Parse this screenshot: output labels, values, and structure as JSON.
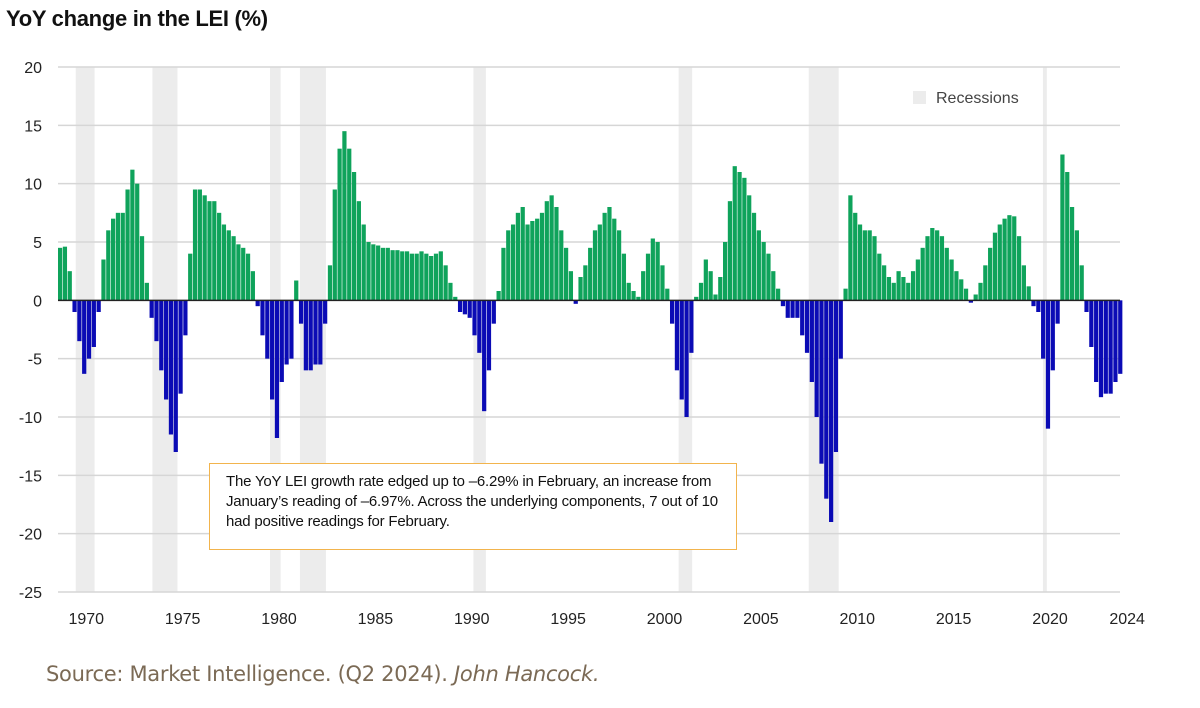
{
  "chart_data": {
    "type": "bar",
    "title": "YoY change in the LEI (%)",
    "xlabel": "",
    "ylabel": "",
    "ylim": [
      -25,
      20
    ],
    "yticks": [
      20,
      15,
      10,
      5,
      0,
      -5,
      -10,
      -15,
      -20,
      -25
    ],
    "xlim": [
      1969,
      2024.2
    ],
    "xticks": [
      1970,
      1975,
      1980,
      1985,
      1990,
      1995,
      2000,
      2005,
      2010,
      2015,
      2020,
      2024
    ],
    "xtick_labels": [
      "1970",
      "1975",
      "1980",
      "1985",
      "1990",
      "1995",
      "2000",
      "2005",
      "2010",
      "2015",
      "2020",
      "2024"
    ],
    "grid": true,
    "legend": {
      "position": "top-right",
      "entries": [
        {
          "label": "Recessions",
          "color": "#ececec"
        }
      ]
    },
    "colors": {
      "positive": "#0fa35b",
      "negative": "#0b0bb5",
      "recession": "#ececec",
      "grid": "#d6d6d6"
    },
    "frequency": "quarterly",
    "quarterly_values_by_year": [
      [
        1969,
        [
          4.5,
          4.6,
          2.5,
          -1
        ]
      ],
      [
        1970,
        [
          -3.5,
          -6.3,
          -5,
          -4
        ]
      ],
      [
        1971,
        [
          -1,
          3.5,
          6,
          7
        ]
      ],
      [
        1972,
        [
          7.5,
          7.5,
          9.5,
          11.2
        ]
      ],
      [
        1973,
        [
          10,
          5.5,
          1.5,
          -1.5
        ]
      ],
      [
        1974,
        [
          -3.5,
          -6,
          -8.5,
          -11.5
        ]
      ],
      [
        1975,
        [
          -13,
          -8,
          -3,
          4
        ]
      ],
      [
        1976,
        [
          9.5,
          9.5,
          9,
          8.5
        ]
      ],
      [
        1977,
        [
          8.5,
          7.5,
          6.5,
          6
        ]
      ],
      [
        1978,
        [
          5.5,
          4.8,
          4.5,
          4
        ]
      ],
      [
        1979,
        [
          2.5,
          -0.5,
          -3,
          -5
        ]
      ],
      [
        1980,
        [
          -8.5,
          -11.8,
          -7,
          -5.5
        ]
      ],
      [
        1981,
        [
          -5,
          1.7,
          -2,
          -6
        ]
      ],
      [
        1982,
        [
          -6,
          -5.5,
          -5.5,
          -2
        ]
      ],
      [
        1983,
        [
          3,
          9.5,
          13,
          14.5
        ]
      ],
      [
        1984,
        [
          13,
          11,
          8.5,
          6.5
        ]
      ],
      [
        1985,
        [
          5,
          4.8,
          4.7,
          4.5
        ]
      ],
      [
        1986,
        [
          4.5,
          4.3,
          4.3,
          4.2
        ]
      ],
      [
        1987,
        [
          4.2,
          4.0,
          4.0,
          4.2
        ]
      ],
      [
        1988,
        [
          4.0,
          3.8,
          4.0,
          4.2
        ]
      ],
      [
        1989,
        [
          3.0,
          1.5,
          0.3,
          -1.0
        ]
      ],
      [
        1990,
        [
          -1.2,
          -1.5,
          -3,
          -4.5
        ]
      ],
      [
        1991,
        [
          -9.5,
          -6,
          -2,
          0.8
        ]
      ],
      [
        1992,
        [
          4.5,
          6,
          6.5,
          7.5
        ]
      ],
      [
        1993,
        [
          8,
          6.5,
          6.8,
          7
        ]
      ],
      [
        1994,
        [
          7.5,
          8.5,
          9,
          8
        ]
      ],
      [
        1995,
        [
          6,
          4.5,
          2.5,
          -0.3
        ]
      ],
      [
        1996,
        [
          2,
          3,
          4.5,
          6
        ]
      ],
      [
        1997,
        [
          6.5,
          7.5,
          8,
          7
        ]
      ],
      [
        1998,
        [
          6,
          4,
          1.5,
          0.8
        ]
      ],
      [
        1999,
        [
          0.3,
          2.5,
          4,
          5.3
        ]
      ],
      [
        2000,
        [
          5,
          3,
          1,
          -2
        ]
      ],
      [
        2001,
        [
          -6,
          -8.5,
          -10,
          -4.5
        ]
      ],
      [
        2002,
        [
          0.3,
          1.5,
          3.5,
          2.5
        ]
      ],
      [
        2003,
        [
          0.5,
          2,
          5,
          8.5
        ]
      ],
      [
        2004,
        [
          11.5,
          11,
          10.5,
          9
        ]
      ],
      [
        2005,
        [
          7.5,
          6,
          5,
          4
        ]
      ],
      [
        2006,
        [
          2.5,
          1,
          -0.5,
          -1.5
        ]
      ],
      [
        2007,
        [
          -1.5,
          -1.5,
          -3,
          -4.5
        ]
      ],
      [
        2008,
        [
          -7,
          -10,
          -14,
          -17
        ]
      ],
      [
        2009,
        [
          -19,
          -13,
          -5,
          1
        ]
      ],
      [
        2010,
        [
          9,
          7.5,
          6.5,
          6
        ]
      ],
      [
        2011,
        [
          6,
          5.5,
          4,
          3
        ]
      ],
      [
        2012,
        [
          2,
          1.5,
          2.5,
          2
        ]
      ],
      [
        2013,
        [
          1.5,
          2.5,
          3.5,
          4.5
        ]
      ],
      [
        2014,
        [
          5.5,
          6.2,
          6,
          5.5
        ]
      ],
      [
        2015,
        [
          4.5,
          3.5,
          2.5,
          1.8
        ]
      ],
      [
        2016,
        [
          1,
          -0.2,
          0.5,
          1.5
        ]
      ],
      [
        2017,
        [
          3,
          4.5,
          5.8,
          6.5
        ]
      ],
      [
        2018,
        [
          7,
          7.3,
          7.2,
          5.5
        ]
      ],
      [
        2019,
        [
          3,
          1.2,
          -0.5,
          -1
        ]
      ],
      [
        2020,
        [
          -5,
          -11,
          -6,
          -2
        ]
      ],
      [
        2021,
        [
          12.5,
          11,
          8,
          6
        ]
      ],
      [
        2022,
        [
          3,
          -1,
          -4,
          -7
        ]
      ],
      [
        2023,
        [
          -8.3,
          -8,
          -8,
          -7
        ]
      ],
      [
        2024,
        [
          -6.3
        ]
      ]
    ],
    "recessions": [
      [
        1969.92,
        1970.9
      ],
      [
        1973.9,
        1975.2
      ],
      [
        1980.0,
        1980.55
      ],
      [
        1981.55,
        1982.9
      ],
      [
        1990.55,
        1991.2
      ],
      [
        2001.2,
        2001.9
      ],
      [
        2007.95,
        2009.5
      ],
      [
        2020.1,
        2020.3
      ]
    ],
    "annotation": "The YoY LEI growth rate edged up to –6.29% in February, an increase from January’s reading of –6.97%. Across the underlying components, 7 out of 10 had positive readings for February."
  },
  "source": {
    "text": "Source: Market Intelligence. (Q2 2024). ",
    "publisher": "John Hancock."
  }
}
